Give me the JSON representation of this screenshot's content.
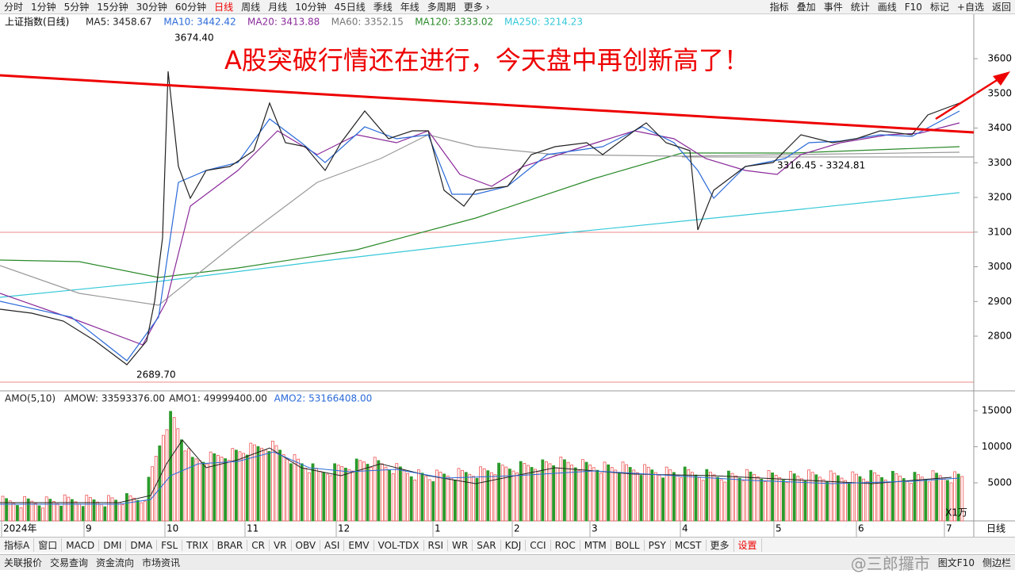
{
  "toolbar": {
    "periods": [
      "分时",
      "1分钟",
      "5分钟",
      "15分钟",
      "30分钟",
      "60分钟",
      "日线",
      "周线",
      "月线",
      "10分钟",
      "45日线",
      "季线",
      "年线",
      "多周期",
      "更多 ›"
    ],
    "active": "日线",
    "tools": [
      "指标",
      "叠加",
      "事件",
      "统计",
      "画线",
      "F10",
      "标记",
      "+自选",
      "返回"
    ]
  },
  "header": {
    "index_name": "上证指数(日线)",
    "ma": [
      "MA5: 3458.67",
      "MA10: 3442.42",
      "MA20: 3413.88",
      "MA60: 3352.15",
      "MA120: 3333.02",
      "MA250: 3214.23"
    ]
  },
  "headline": "A股突破行情还在进行，今天盘中再创新高了！",
  "annotations": {
    "high": "3674.40",
    "low": "2689.70",
    "range": "3316.45 - 3324.81"
  },
  "price_axis": {
    "ticks": [
      3600,
      3500,
      3400,
      3300,
      3200,
      3100,
      3000,
      2900,
      2800
    ]
  },
  "volume": {
    "header": [
      "AMO(5,10)",
      "AMOW: 33593376.00",
      "AMO1: 49999400.00",
      "AMO2: 53166408.00"
    ],
    "ticks": [
      15000,
      10000,
      5000
    ],
    "unit": "X1万"
  },
  "date_axis": {
    "labels": [
      "2024年",
      "9",
      "10",
      "11",
      "12",
      "1",
      "2",
      "3",
      "4",
      "5",
      "6",
      "7"
    ],
    "period": "日线"
  },
  "tabs": [
    "指标A",
    "窗口",
    "MACD",
    "DMI",
    "DMA",
    "FSL",
    "TRIX",
    "BRAR",
    "CR",
    "VR",
    "OBV",
    "ASI",
    "EMV",
    "VOL-TDX",
    "RSI",
    "WR",
    "SAR",
    "KDJ",
    "CCI",
    "ROC",
    "MTM",
    "BOLL",
    "PSY",
    "MCST",
    "更多",
    "设置"
  ],
  "status": {
    "left": [
      "关联报价",
      "交易查询",
      "资金流向",
      "市场资讯"
    ],
    "right": [
      "图文F10",
      "侧边栏"
    ],
    "watermark": "@三郎攞市"
  }
}
